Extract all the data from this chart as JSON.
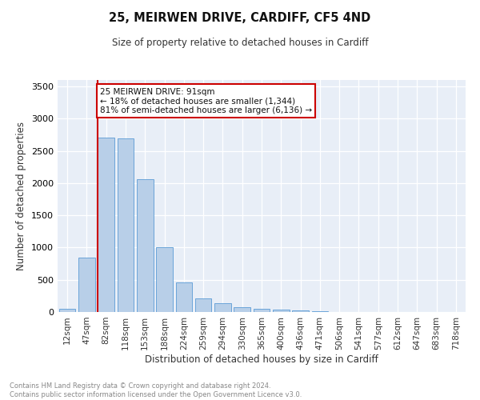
{
  "title_line1": "25, MEIRWEN DRIVE, CARDIFF, CF5 4ND",
  "title_line2": "Size of property relative to detached houses in Cardiff",
  "xlabel": "Distribution of detached houses by size in Cardiff",
  "ylabel": "Number of detached properties",
  "bar_labels": [
    "12sqm",
    "47sqm",
    "82sqm",
    "118sqm",
    "153sqm",
    "188sqm",
    "224sqm",
    "259sqm",
    "294sqm",
    "330sqm",
    "365sqm",
    "400sqm",
    "436sqm",
    "471sqm",
    "506sqm",
    "541sqm",
    "577sqm",
    "612sqm",
    "647sqm",
    "683sqm",
    "718sqm"
  ],
  "bar_values": [
    55,
    850,
    2710,
    2700,
    2060,
    1010,
    455,
    215,
    140,
    70,
    55,
    35,
    20,
    10,
    5,
    3,
    2,
    2,
    1,
    1,
    0
  ],
  "bar_color": "#b8cfe8",
  "bar_edge_color": "#5b9bd5",
  "vline_x": 2.0,
  "vline_color": "#cc0000",
  "annotation_text": "25 MEIRWEN DRIVE: 91sqm\n← 18% of detached houses are smaller (1,344)\n81% of semi-detached houses are larger (6,136) →",
  "annotation_box_color": "#ffffff",
  "annotation_box_edge": "#cc0000",
  "ylim": [
    0,
    3600
  ],
  "yticks": [
    0,
    500,
    1000,
    1500,
    2000,
    2500,
    3000,
    3500
  ],
  "bg_color": "#e8eef7",
  "footnote": "Contains HM Land Registry data © Crown copyright and database right 2024.\nContains public sector information licensed under the Open Government Licence v3.0."
}
